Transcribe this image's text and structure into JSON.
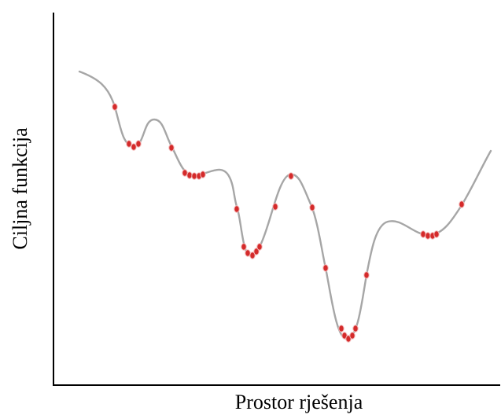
{
  "diagram": {
    "xlabel": "Prostor rješenja",
    "ylabel": "Ciljna funkcija"
  },
  "colors": {
    "axis": "#000000",
    "curve": "#a6a6a6",
    "marker": "#d42a2a",
    "marker_outline": "#f3b8b8"
  }
}
